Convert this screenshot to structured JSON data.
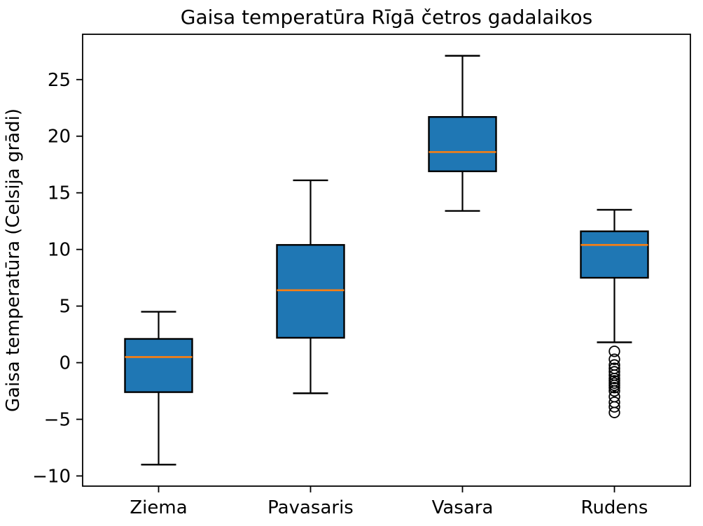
{
  "chart_data": {
    "type": "boxplot",
    "title": "Gaisa temperatūra Rīgā četros gadalaikos",
    "ylabel": "Gaisa temperatūra (Celsija grādi)",
    "xlabel": "",
    "categories": [
      "Ziema",
      "Pavasaris",
      "Vasara",
      "Rudens"
    ],
    "series": [
      {
        "name": "Ziema",
        "whislo": -9.0,
        "q1": -2.6,
        "med": 0.5,
        "q3": 2.1,
        "whishi": 4.5,
        "outliers": []
      },
      {
        "name": "Pavasaris",
        "whislo": -2.7,
        "q1": 2.2,
        "med": 6.4,
        "q3": 10.4,
        "whishi": 16.1,
        "outliers": []
      },
      {
        "name": "Vasara",
        "whislo": 13.4,
        "q1": 16.9,
        "med": 18.6,
        "q3": 21.7,
        "whishi": 27.1,
        "outliers": []
      },
      {
        "name": "Rudens",
        "whislo": 1.8,
        "q1": 7.5,
        "med": 10.4,
        "q3": 11.6,
        "whishi": 13.5,
        "outliers": [
          1.0,
          0.3,
          -0.2,
          -0.5,
          -0.8,
          -1.1,
          -1.4,
          -1.6,
          -1.8,
          -2.0,
          -2.2,
          -2.5,
          -3.0,
          -3.5,
          -3.9,
          -4.4
        ]
      }
    ],
    "yticks": [
      -10,
      -5,
      0,
      5,
      10,
      15,
      20,
      25
    ],
    "ylim": [
      -10.9,
      29.0
    ],
    "grid": false,
    "legend": null,
    "colors": {
      "box_fill": "#1f77b4",
      "box_edge": "#000000",
      "median": "#ff7f0e",
      "whisker": "#000000",
      "cap": "#000000",
      "outlier_edge": "#000000",
      "axes_edge": "#000000",
      "background": "#ffffff"
    }
  }
}
